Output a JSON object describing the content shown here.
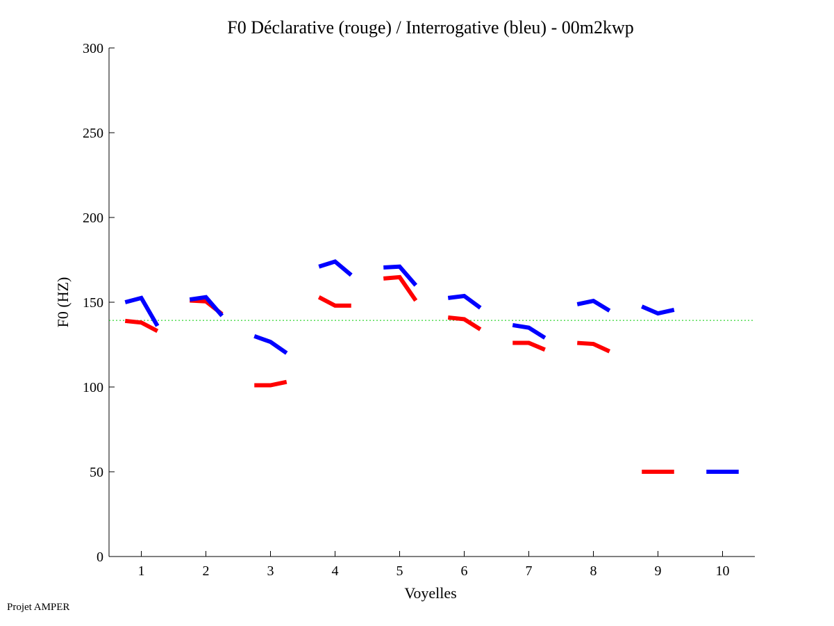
{
  "chart_data": {
    "type": "line",
    "title": "F0 Déclarative (rouge) / Interrogative (bleu) - 00m2kwp",
    "xlabel": "Voyelles",
    "ylabel": "F0 (HZ)",
    "ylim": [
      0,
      300
    ],
    "xlim": [
      0.5,
      10.5
    ],
    "yticks": [
      0,
      50,
      100,
      150,
      200,
      250,
      300
    ],
    "xticks": [
      1,
      2,
      3,
      4,
      5,
      6,
      7,
      8,
      9,
      10
    ],
    "reference_line": {
      "value": 139.3,
      "color": "#00cc00",
      "style": "dotted"
    },
    "point_offsets": [
      -0.25,
      0,
      0.25
    ],
    "series": [
      {
        "name": "Déclarative",
        "color": "#ff0000",
        "segments": [
          {
            "x": 1,
            "values": [
              139,
              138,
              133
            ]
          },
          {
            "x": 2,
            "values": [
              151,
              150.5,
              143
            ]
          },
          {
            "x": 3,
            "values": [
              101,
              101,
              103
            ]
          },
          {
            "x": 4,
            "values": [
              153,
              148,
              148
            ]
          },
          {
            "x": 5,
            "values": [
              164,
              164.8,
              151
            ]
          },
          {
            "x": 6,
            "values": [
              141,
              140,
              134
            ]
          },
          {
            "x": 7,
            "values": [
              126,
              126,
              122
            ]
          },
          {
            "x": 8,
            "values": [
              126,
              125.4,
              121
            ]
          },
          {
            "x": 9,
            "values": [
              50,
              50,
              50
            ]
          }
        ]
      },
      {
        "name": "Interrogative",
        "color": "#0000ff",
        "segments": [
          {
            "x": 1,
            "values": [
              150,
              152.5,
              136
            ]
          },
          {
            "x": 2,
            "values": [
              151.6,
              153,
              142
            ]
          },
          {
            "x": 3,
            "values": [
              130,
              126.6,
              120
            ]
          },
          {
            "x": 4,
            "values": [
              171,
              174,
              166
            ]
          },
          {
            "x": 5,
            "values": [
              170.5,
              171,
              160
            ]
          },
          {
            "x": 6,
            "values": [
              152.5,
              153.7,
              146.7
            ]
          },
          {
            "x": 7,
            "values": [
              136.5,
              135,
              129
            ]
          },
          {
            "x": 8,
            "values": [
              148.8,
              150.8,
              145
            ]
          },
          {
            "x": 9,
            "values": [
              147.5,
              143.4,
              145.5
            ]
          },
          {
            "x": 10,
            "values": [
              50,
              50,
              50
            ]
          }
        ]
      }
    ]
  },
  "footer": "Projet AMPER"
}
